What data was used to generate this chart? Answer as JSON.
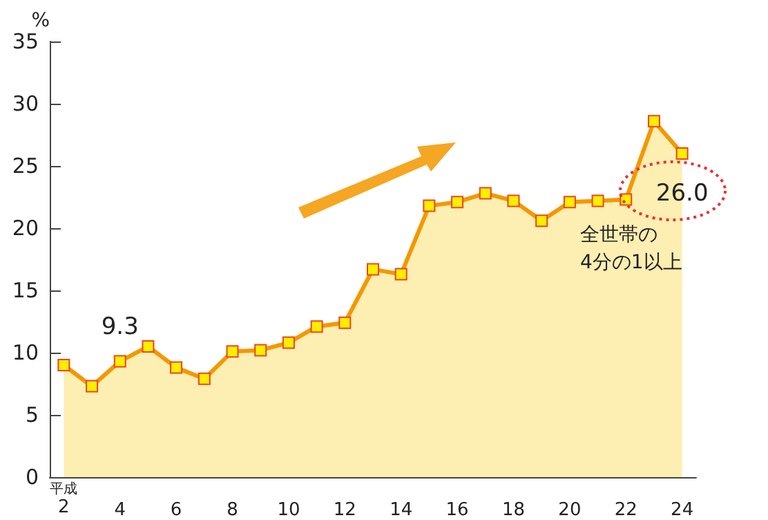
{
  "chart_data": {
    "type": "area",
    "ylabel": "%",
    "categories": [
      "平成\n2",
      null,
      "4",
      null,
      "6",
      null,
      "8",
      null,
      "10",
      null,
      "12",
      null,
      "14",
      null,
      "16",
      null,
      "18",
      null,
      "20",
      null,
      "22",
      null,
      "24"
    ],
    "series": [
      {
        "color": "#f39800",
        "values": [
          9.0,
          7.3,
          9.3,
          10.5,
          8.8,
          7.9,
          10.1,
          10.2,
          10.8,
          12.1,
          12.4,
          16.7,
          16.3,
          21.8,
          22.1,
          22.8,
          22.2,
          20.6,
          22.1,
          22.2,
          22.3,
          28.6,
          26.0
        ],
        "value_labels": [
          null,
          null,
          "9.3",
          null,
          null,
          null,
          null,
          null,
          null,
          null,
          null,
          null,
          null,
          null,
          null,
          null,
          null,
          null,
          null,
          null,
          null,
          null,
          "26.0"
        ]
      }
    ],
    "ylim": [
      0,
      35
    ],
    "yticks": [
      0,
      5,
      10,
      15,
      20,
      25,
      30,
      35
    ],
    "grid": false,
    "marker": "square",
    "line_style": "solid",
    "annotations": [
      "全世帯の\n4分の1以上"
    ]
  }
}
